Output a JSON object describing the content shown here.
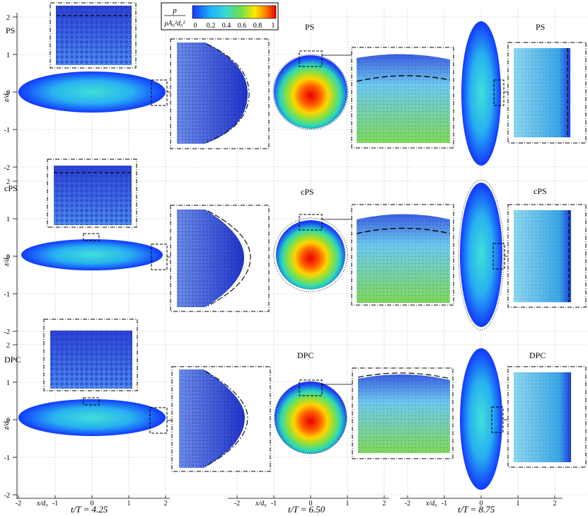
{
  "colorbar": {
    "label_num": "p",
    "label_den": "ρA₀²d₀²",
    "ticks": [
      "0",
      "0.2",
      "0.4",
      "0.6",
      "0.8",
      "1"
    ]
  },
  "rows": [
    {
      "id": "ps",
      "label": "PS"
    },
    {
      "id": "cps",
      "label": "cPS"
    },
    {
      "id": "dpc",
      "label": "DPC"
    }
  ],
  "columns": [
    {
      "time_label": "t/T = 4.25"
    },
    {
      "time_label": "t/T = 6.50"
    },
    {
      "time_label": "t/T = 8.75"
    }
  ],
  "axes": {
    "z_label": "z/d₀",
    "x_label": "x/d₀",
    "z_ticks": [
      "2",
      "1",
      "0",
      "-1",
      "-2"
    ],
    "x_ticks": [
      "-2",
      "-1",
      "0",
      "1",
      "2"
    ]
  },
  "colors": {
    "low": "#1f3fff",
    "mid": "#36d9d2",
    "green": "#6ee04a",
    "yellow": "#ffea00",
    "high": "#e60000"
  }
}
